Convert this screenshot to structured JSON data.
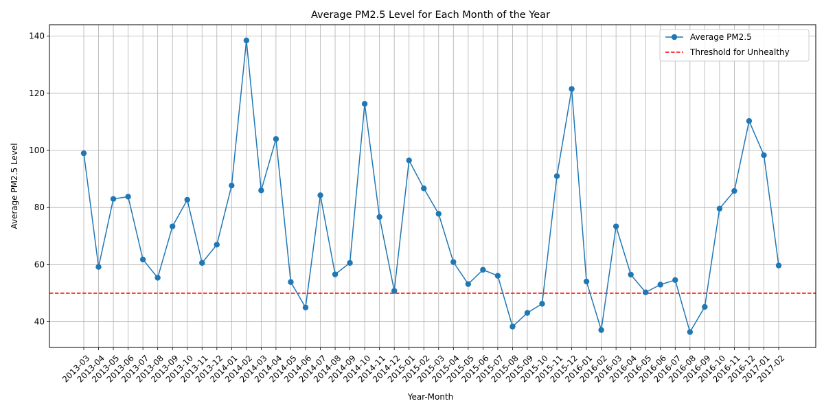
{
  "chart_data": {
    "type": "line",
    "title": "Average PM2.5 Level for Each Month of the Year",
    "xlabel": "Year-Month",
    "ylabel": "Average PM2.5 Level",
    "ylim": [
      31,
      144
    ],
    "yticks": [
      40,
      60,
      80,
      100,
      120,
      140
    ],
    "grid": true,
    "legend_position": "top-right",
    "categories": [
      "2013-03",
      "2013-04",
      "2013-05",
      "2013-06",
      "2013-07",
      "2013-08",
      "2013-09",
      "2013-10",
      "2013-11",
      "2013-12",
      "2014-01",
      "2014-02",
      "2014-03",
      "2014-04",
      "2014-05",
      "2014-06",
      "2014-07",
      "2014-08",
      "2014-09",
      "2014-10",
      "2014-11",
      "2014-12",
      "2015-01",
      "2015-02",
      "2015-03",
      "2015-04",
      "2015-05",
      "2015-06",
      "2015-07",
      "2015-08",
      "2015-09",
      "2015-10",
      "2015-11",
      "2015-12",
      "2016-01",
      "2016-02",
      "2016-03",
      "2016-04",
      "2016-05",
      "2016-06",
      "2016-07",
      "2016-08",
      "2016-09",
      "2016-10",
      "2016-11",
      "2016-12",
      "2017-01",
      "2017-02"
    ],
    "series": [
      {
        "name": "Average PM2.5",
        "color": "#1f77b4",
        "marker": "circle",
        "values": [
          99.0,
          59.2,
          83.0,
          83.8,
          61.8,
          55.4,
          73.4,
          82.7,
          60.6,
          67.0,
          87.7,
          138.5,
          86.0,
          104.0,
          53.9,
          45.0,
          84.3,
          56.6,
          60.6,
          116.3,
          76.7,
          50.8,
          96.5,
          86.7,
          77.8,
          60.9,
          53.2,
          58.2,
          56.1,
          38.3,
          43.1,
          46.3,
          91.0,
          121.5,
          54.1,
          37.1,
          73.4,
          56.5,
          50.3,
          53.0,
          54.6,
          36.4,
          45.2,
          79.6,
          85.8,
          110.3,
          98.3,
          59.7
        ]
      }
    ],
    "threshold": {
      "name": "Threshold for Unhealthy",
      "value": 50,
      "color": "#ff0000",
      "style": "dashed"
    }
  }
}
